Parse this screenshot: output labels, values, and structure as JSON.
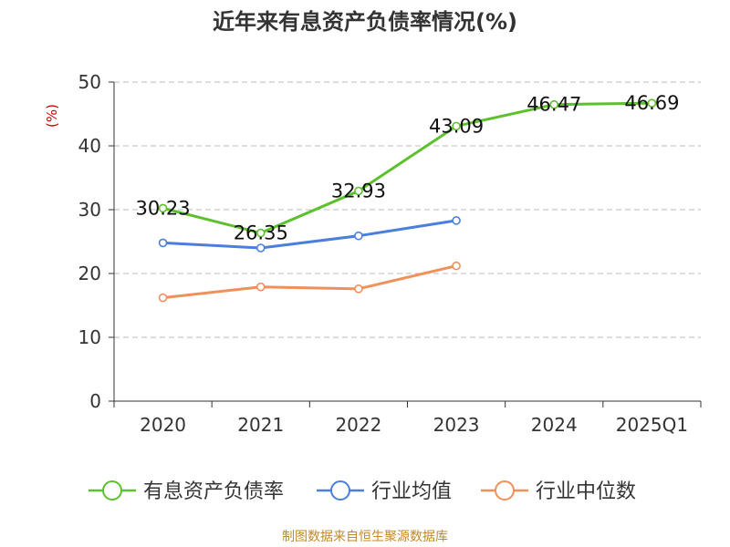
{
  "chart_data": {
    "type": "line",
    "title": "近年来有息资产负债率情况(%)",
    "ylabel": "(%)",
    "xlabel": "",
    "categories": [
      "2020",
      "2021",
      "2022",
      "2023",
      "2024",
      "2025Q1"
    ],
    "ylim": [
      0,
      50
    ],
    "yticks": [
      0,
      10,
      20,
      30,
      40,
      50
    ],
    "grid": true,
    "legend_position": "bottom",
    "series": [
      {
        "name": "有息资产负债率",
        "color": "#5cc12c",
        "values": [
          30.23,
          26.35,
          32.93,
          43.09,
          46.47,
          46.69
        ],
        "labels": [
          "30.23",
          "26.35",
          "32.93",
          "43.09",
          "46.47",
          "46.69"
        ]
      },
      {
        "name": "行业均值",
        "color": "#4a7fdc",
        "values": [
          24.8,
          24.0,
          25.9,
          28.3,
          null,
          null
        ]
      },
      {
        "name": "行业中位数",
        "color": "#f0905a",
        "values": [
          16.2,
          17.9,
          17.6,
          21.2,
          null,
          null
        ]
      }
    ]
  },
  "source_note": "制图数据来自恒生聚源数据库",
  "colors": {
    "axis": "#333333",
    "grid": "#bbbbbb",
    "ylabel": "#cc0000"
  }
}
